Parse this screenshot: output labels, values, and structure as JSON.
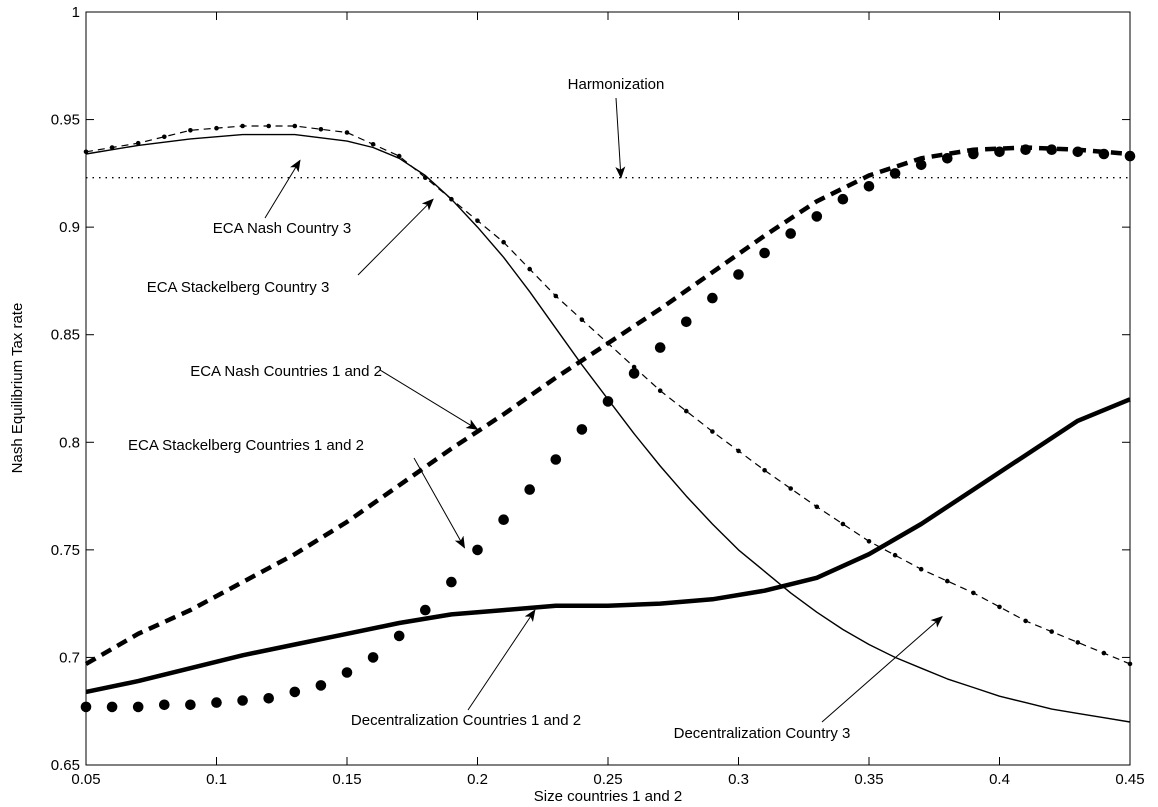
{
  "chart_data": {
    "type": "line",
    "title": "",
    "xlabel": "Size countries 1 and 2",
    "ylabel": "Nash Equilibrium Tax rate",
    "xlim": [
      0.05,
      0.45
    ],
    "ylim": [
      0.65,
      1.0
    ],
    "xticks": [
      0.05,
      0.1,
      0.15,
      0.2,
      0.25,
      0.3,
      0.35,
      0.4,
      0.45
    ],
    "xtick_labels": [
      "0.05",
      "0.1",
      "0.15",
      "0.2",
      "0.25",
      "0.3",
      "0.35",
      "0.4",
      "0.45"
    ],
    "yticks": [
      0.65,
      0.7,
      0.75,
      0.8,
      0.85,
      0.9,
      0.95,
      1.0
    ],
    "ytick_labels": [
      "0.65",
      "0.7",
      "0.75",
      "0.8",
      "0.85",
      "0.9",
      "0.95",
      "1"
    ],
    "grid": false,
    "legend": "none",
    "series": [
      {
        "name": "Harmonization",
        "style": "dotted-thin",
        "x": [
          0.05,
          0.45
        ],
        "y": [
          0.923,
          0.923
        ]
      },
      {
        "name": "ECA Nash Country 3",
        "style": "solid-thin",
        "x": [
          0.05,
          0.07,
          0.09,
          0.11,
          0.13,
          0.15,
          0.16,
          0.17,
          0.18,
          0.19,
          0.2,
          0.21,
          0.22,
          0.23,
          0.24,
          0.25,
          0.26,
          0.27,
          0.28,
          0.29,
          0.3,
          0.31,
          0.32,
          0.33,
          0.34,
          0.35,
          0.36,
          0.37,
          0.38,
          0.39,
          0.4,
          0.41,
          0.42,
          0.43,
          0.44,
          0.45
        ],
        "y": [
          0.934,
          0.938,
          0.941,
          0.943,
          0.943,
          0.94,
          0.937,
          0.932,
          0.924,
          0.913,
          0.9,
          0.886,
          0.87,
          0.853,
          0.836,
          0.82,
          0.804,
          0.789,
          0.775,
          0.762,
          0.75,
          0.74,
          0.73,
          0.721,
          0.713,
          0.706,
          0.7,
          0.695,
          0.69,
          0.686,
          0.682,
          0.679,
          0.676,
          0.674,
          0.672,
          0.67
        ]
      },
      {
        "name": "ECA Stackelberg Country 3",
        "style": "dashed-thin-with-small-dots",
        "x": [
          0.05,
          0.07,
          0.09,
          0.11,
          0.13,
          0.15,
          0.17,
          0.19,
          0.21,
          0.23,
          0.25,
          0.27,
          0.29,
          0.31,
          0.33,
          0.35,
          0.37,
          0.39,
          0.41,
          0.43,
          0.45
        ],
        "y": [
          0.935,
          0.939,
          0.945,
          0.947,
          0.947,
          0.944,
          0.933,
          0.913,
          0.893,
          0.868,
          0.846,
          0.824,
          0.805,
          0.787,
          0.77,
          0.754,
          0.741,
          0.73,
          0.717,
          0.707,
          0.697
        ]
      },
      {
        "name": "ECA Nash Countries 1 and 2",
        "style": "dashed-thick",
        "x": [
          0.05,
          0.07,
          0.09,
          0.11,
          0.13,
          0.15,
          0.17,
          0.19,
          0.21,
          0.23,
          0.25,
          0.27,
          0.29,
          0.31,
          0.33,
          0.35,
          0.37,
          0.39,
          0.41,
          0.43,
          0.45
        ],
        "y": [
          0.697,
          0.711,
          0.722,
          0.735,
          0.748,
          0.763,
          0.78,
          0.797,
          0.813,
          0.83,
          0.846,
          0.862,
          0.879,
          0.896,
          0.912,
          0.924,
          0.932,
          0.936,
          0.937,
          0.936,
          0.934
        ]
      },
      {
        "name": "ECA Stackelberg Countries 1 and 2",
        "style": "large-dots",
        "x": [
          0.05,
          0.06,
          0.07,
          0.08,
          0.09,
          0.1,
          0.11,
          0.12,
          0.13,
          0.14,
          0.15,
          0.16,
          0.17,
          0.18,
          0.19,
          0.2,
          0.21,
          0.22,
          0.23,
          0.24,
          0.25,
          0.26,
          0.27,
          0.28,
          0.29,
          0.3,
          0.31,
          0.32,
          0.33,
          0.34,
          0.35,
          0.36,
          0.37,
          0.38,
          0.39,
          0.4,
          0.41,
          0.42,
          0.43,
          0.44,
          0.45
        ],
        "y": [
          0.677,
          0.677,
          0.677,
          0.678,
          0.678,
          0.679,
          0.68,
          0.681,
          0.684,
          0.687,
          0.693,
          0.7,
          0.71,
          0.722,
          0.735,
          0.75,
          0.764,
          0.778,
          0.792,
          0.806,
          0.819,
          0.832,
          0.844,
          0.856,
          0.867,
          0.878,
          0.888,
          0.897,
          0.905,
          0.913,
          0.919,
          0.925,
          0.929,
          0.932,
          0.934,
          0.935,
          0.936,
          0.936,
          0.935,
          0.934,
          0.933
        ]
      },
      {
        "name": "Decentralization Countries 1 and 2",
        "style": "solid-thick",
        "x": [
          0.05,
          0.07,
          0.09,
          0.11,
          0.13,
          0.15,
          0.17,
          0.19,
          0.21,
          0.23,
          0.25,
          0.27,
          0.29,
          0.31,
          0.33,
          0.35,
          0.37,
          0.39,
          0.41,
          0.43,
          0.45
        ],
        "y": [
          0.684,
          0.689,
          0.695,
          0.701,
          0.706,
          0.711,
          0.716,
          0.72,
          0.722,
          0.724,
          0.724,
          0.725,
          0.727,
          0.731,
          0.737,
          0.748,
          0.762,
          0.778,
          0.794,
          0.81,
          0.82
        ]
      }
    ],
    "annotations": [
      {
        "text": "Harmonization",
        "target": [
          0.255,
          0.923
        ]
      },
      {
        "text": "ECA Nash Country 3",
        "target": [
          0.132,
          0.931
        ]
      },
      {
        "text": "ECA Stackelberg Country 3",
        "target": [
          0.183,
          0.913
        ]
      },
      {
        "text": "ECA Nash Countries 1 and 2",
        "target": [
          0.2,
          0.806
        ]
      },
      {
        "text": "ECA Stackelberg Countries 1 and 2",
        "target": [
          0.195,
          0.751
        ]
      },
      {
        "text": "Decentralization Countries 1 and 2",
        "target": [
          0.222,
          0.722
        ]
      },
      {
        "text": "Decentralization Country 3",
        "target": [
          0.378,
          0.719
        ]
      }
    ]
  }
}
